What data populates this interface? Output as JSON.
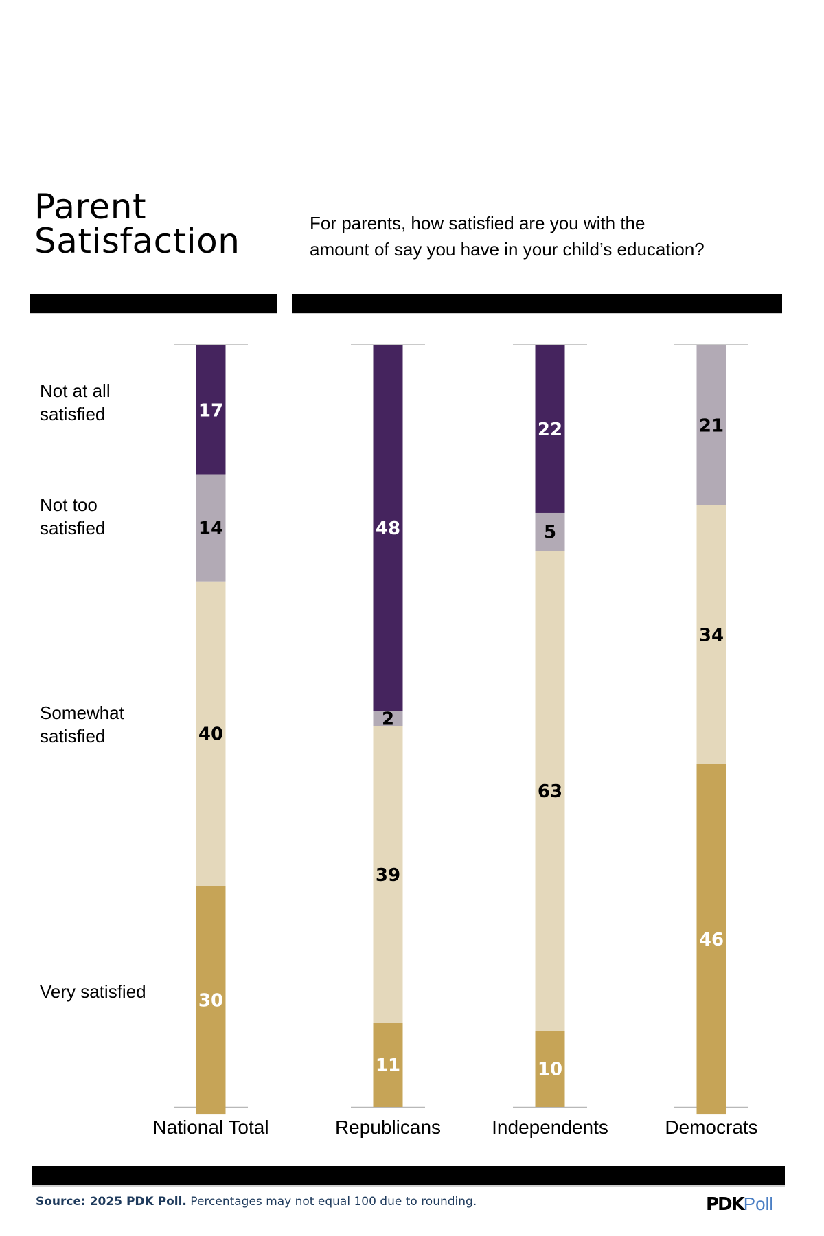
{
  "header": {
    "title_line1": "Parent",
    "title_line2": "Satisfaction",
    "question_line1": "For parents, how satisfied are you with the",
    "question_line2": "amount of say you have in your child’s education?"
  },
  "legend": [
    {
      "line1": "Not at all",
      "line2": "satisfied"
    },
    {
      "line1": "Not too",
      "line2": "satisfied"
    },
    {
      "line1": "Somewhat",
      "line2": "satisfied"
    },
    {
      "line1": "Very satisfied",
      "line2": ""
    }
  ],
  "colors": {
    "not_at_all": "#45245e",
    "not_too": "#b2aab5",
    "somewhat": "#e4d8bb",
    "very": "#c6a457",
    "gridline": "#b8b8b8"
  },
  "chart_data": {
    "type": "bar",
    "stacked": true,
    "orientation": "vertical",
    "title": "Parent Satisfaction",
    "subtitle": "For parents, how satisfied are you with the amount of say you have in your child’s education?",
    "categories": [
      "National Total",
      "Republicans",
      "Independents",
      "Democrats"
    ],
    "series": [
      {
        "name": "Not at all satisfied",
        "values": [
          17,
          48,
          22,
          0
        ],
        "label_color": "#ffffff"
      },
      {
        "name": "Not too satisfied",
        "values": [
          14,
          2,
          5,
          21
        ],
        "label_color": "#000000"
      },
      {
        "name": "Somewhat satisfied",
        "values": [
          40,
          39,
          63,
          34
        ],
        "label_color": "#000000"
      },
      {
        "name": "Very satisfied",
        "values": [
          30,
          11,
          10,
          46
        ],
        "label_color": "#ffffff"
      }
    ],
    "stack_order": "top-to-bottom",
    "ylim": [
      0,
      100
    ],
    "unit": "%",
    "legend_position": "left",
    "grid": false
  },
  "footer": {
    "source_bold": "Source: 2025 PDK Poll.",
    "source_note": " Percentages may not equal 100 due to rounding.",
    "logo_pdk": "PDK",
    "logo_poll": "Poll"
  }
}
